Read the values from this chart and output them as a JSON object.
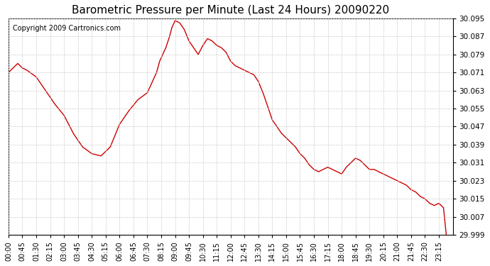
{
  "title": "Barometric Pressure per Minute (Last 24 Hours) 20090220",
  "copyright": "Copyright 2009 Cartronics.com",
  "line_color": "#cc0000",
  "background_color": "#ffffff",
  "plot_bg_color": "#ffffff",
  "grid_color": "#cccccc",
  "yticks": [
    29.999,
    30.007,
    30.015,
    30.023,
    30.031,
    30.039,
    30.047,
    30.055,
    30.063,
    30.071,
    30.079,
    30.087,
    30.095
  ],
  "xtick_labels": [
    "00:00",
    "00:45",
    "01:30",
    "02:15",
    "03:00",
    "03:45",
    "04:30",
    "05:15",
    "06:00",
    "06:45",
    "07:30",
    "08:15",
    "09:00",
    "09:45",
    "10:30",
    "11:15",
    "12:00",
    "12:45",
    "13:30",
    "14:15",
    "15:00",
    "15:45",
    "16:30",
    "17:15",
    "18:00",
    "18:45",
    "19:30",
    "20:15",
    "21:00",
    "21:45",
    "22:30",
    "23:15"
  ],
  "key_minutes": [
    0,
    30,
    45,
    60,
    90,
    120,
    150,
    180,
    210,
    240,
    270,
    300,
    330,
    360,
    390,
    420,
    450,
    460,
    470,
    480,
    490,
    500,
    510,
    520,
    530,
    540,
    555,
    570,
    585,
    600,
    615,
    630,
    645,
    660,
    675,
    690,
    705,
    720,
    735,
    750,
    765,
    780,
    795,
    810,
    825,
    840,
    855,
    870,
    885,
    900,
    915,
    930,
    945,
    960,
    975,
    990,
    1005,
    1020,
    1035,
    1050,
    1065,
    1080,
    1095,
    1110,
    1125,
    1140,
    1155,
    1170,
    1185,
    1200,
    1215,
    1230,
    1245,
    1260,
    1275,
    1290,
    1305,
    1320,
    1335,
    1350,
    1365,
    1380,
    1395,
    1410,
    1419
  ],
  "key_pressures": [
    30.071,
    30.075,
    30.073,
    30.072,
    30.069,
    30.063,
    30.057,
    30.052,
    30.044,
    30.038,
    30.035,
    30.034,
    30.038,
    30.048,
    30.054,
    30.059,
    30.062,
    30.065,
    30.068,
    30.071,
    30.076,
    30.079,
    30.082,
    30.086,
    30.091,
    30.094,
    30.093,
    30.09,
    30.085,
    30.082,
    30.079,
    30.083,
    30.086,
    30.085,
    30.083,
    30.082,
    30.08,
    30.076,
    30.074,
    30.073,
    30.072,
    30.071,
    30.07,
    30.067,
    30.062,
    30.056,
    30.05,
    30.047,
    30.044,
    30.042,
    30.04,
    30.038,
    30.035,
    30.033,
    30.03,
    30.028,
    30.027,
    30.028,
    30.029,
    30.028,
    30.027,
    30.026,
    30.029,
    30.031,
    30.033,
    30.032,
    30.03,
    30.028,
    30.028,
    30.027,
    30.026,
    30.025,
    30.024,
    30.023,
    30.022,
    30.021,
    30.019,
    30.018,
    30.016,
    30.015,
    30.013,
    30.012,
    30.013,
    30.011,
    29.999
  ]
}
